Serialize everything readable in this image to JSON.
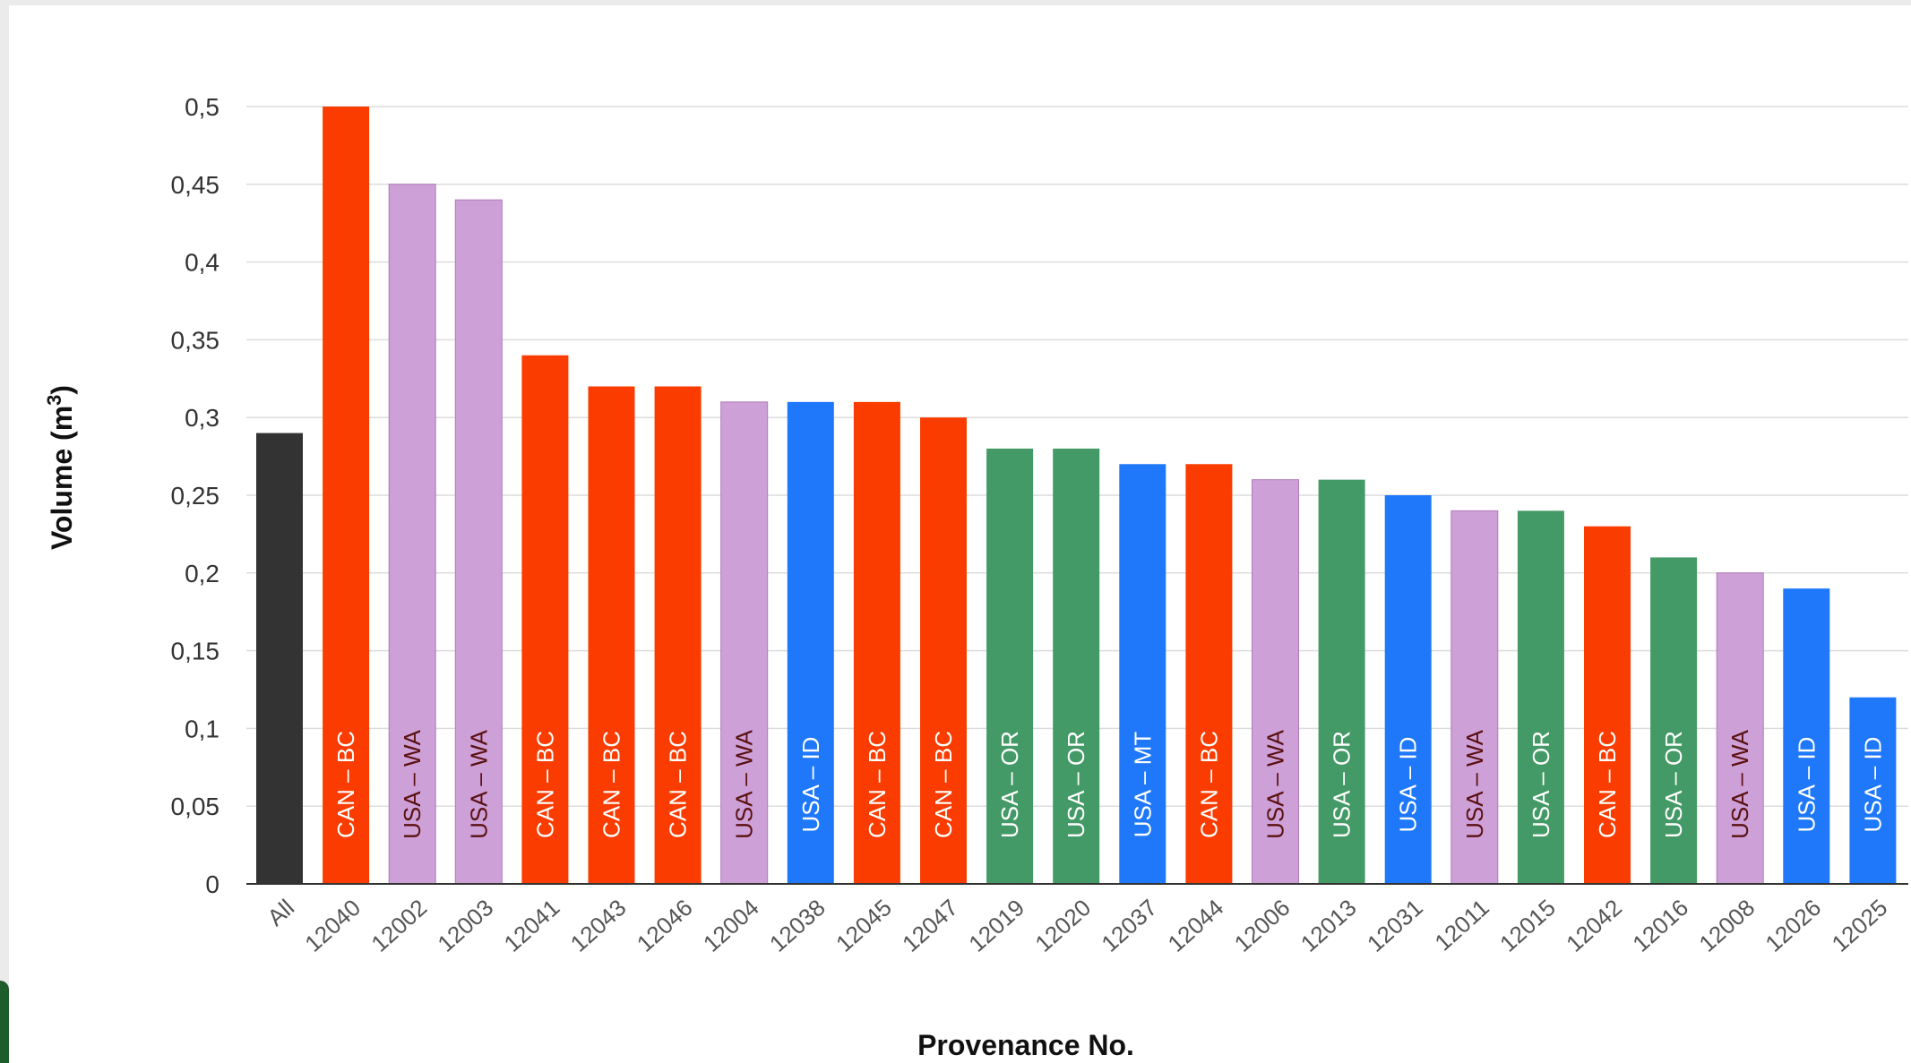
{
  "chart_data": {
    "type": "bar",
    "title": "",
    "xlabel": "Provenance No.",
    "ylabel": "Volume (m³)",
    "ylabel_main": "Volume (m",
    "ylabel_sup": "3",
    "ylabel_close": ")",
    "ylim": [
      0,
      0.5
    ],
    "grid": true,
    "legend": "none",
    "yticks": [
      "0",
      "0,05",
      "0,1",
      "0,15",
      "0,2",
      "0,25",
      "0,3",
      "0,35",
      "0,4",
      "0,45",
      "0,5"
    ],
    "categories": [
      "All",
      "12040",
      "12002",
      "12003",
      "12041",
      "12043",
      "12046",
      "12004",
      "12038",
      "12045",
      "12047",
      "12019",
      "12020",
      "12037",
      "12044",
      "12006",
      "12013",
      "12031",
      "12011",
      "12015",
      "12042",
      "12016",
      "12008",
      "12026",
      "12025"
    ],
    "values": [
      0.29,
      0.5,
      0.45,
      0.44,
      0.34,
      0.32,
      0.32,
      0.31,
      0.31,
      0.31,
      0.3,
      0.28,
      0.28,
      0.27,
      0.27,
      0.26,
      0.26,
      0.25,
      0.24,
      0.24,
      0.23,
      0.21,
      0.2,
      0.19,
      0.12
    ],
    "bar_labels": [
      "",
      "CAN – BC",
      "USA – WA",
      "USA – WA",
      "CAN – BC",
      "CAN – BC",
      "CAN – BC",
      "USA – WA",
      "USA – ID",
      "CAN – BC",
      "CAN – BC",
      "USA – OR",
      "USA – OR",
      "USA – MT",
      "CAN – BC",
      "USA – WA",
      "USA – OR",
      "USA – ID",
      "USA – WA",
      "USA – OR",
      "CAN – BC",
      "USA – OR",
      "USA – WA",
      "USA – ID",
      "USA – ID"
    ],
    "colors": {
      "All": "#333333",
      "CAN – BC": "#fa3c00",
      "USA – WA": "#cda0d8",
      "USA – ID": "#1f78fa",
      "USA – MT": "#1f78fa",
      "USA – OR": "#449a66",
      "label_dark": "#ffffff",
      "label_on_light": "#5a1010",
      "grid": "#dcdcdc",
      "axis": "#333333"
    }
  }
}
